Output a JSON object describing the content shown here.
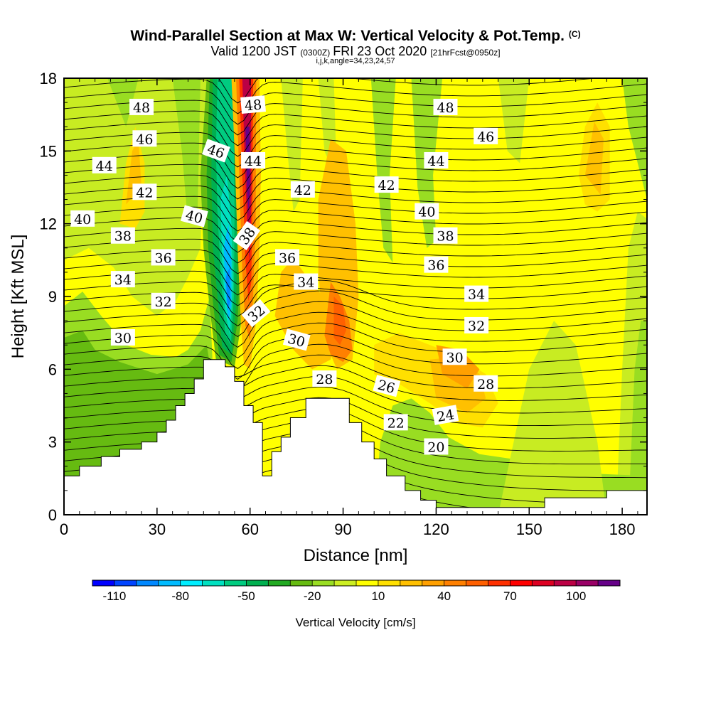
{
  "header": {
    "title": "Wind-Parallel Section at Max W: Vertical Velocity & Pot.Temp.",
    "title_mark": "(C)",
    "valid_prefix": "Valid 1200 JST",
    "valid_utc": "(0300Z)",
    "valid_date": "FRI 23 Oct 2020",
    "forecast": "[21hrFcst@0950z]",
    "indices": "i,j,k,angle=34,23,24,57"
  },
  "chart_data": {
    "type": "heatmap",
    "xlabel": "Distance [nm]",
    "ylabel": "Height [Kft MSL]",
    "xlim": [
      0,
      188
    ],
    "ylim": [
      0,
      18
    ],
    "x_ticks": [
      "0",
      "30",
      "60",
      "90",
      "120",
      "150",
      "180"
    ],
    "y_ticks": [
      "0",
      "3",
      "6",
      "9",
      "12",
      "15",
      "18"
    ],
    "x_tick_values": [
      0,
      30,
      60,
      90,
      120,
      150,
      180
    ],
    "y_tick_values": [
      0,
      3,
      6,
      9,
      12,
      15,
      18
    ],
    "terrain_profile": [
      [
        0,
        1.6
      ],
      [
        5,
        1.6
      ],
      [
        5,
        2.0
      ],
      [
        12,
        2.0
      ],
      [
        12,
        2.4
      ],
      [
        18,
        2.4
      ],
      [
        18,
        2.7
      ],
      [
        25,
        2.7
      ],
      [
        25,
        3.0
      ],
      [
        30,
        3.0
      ],
      [
        30,
        3.4
      ],
      [
        33,
        3.4
      ],
      [
        33,
        3.9
      ],
      [
        36,
        3.9
      ],
      [
        36,
        4.5
      ],
      [
        39,
        4.5
      ],
      [
        39,
        5.0
      ],
      [
        42,
        5.0
      ],
      [
        42,
        5.6
      ],
      [
        45,
        5.6
      ],
      [
        45,
        6.4
      ],
      [
        52,
        6.4
      ],
      [
        52,
        6.1
      ],
      [
        55,
        6.1
      ],
      [
        55,
        5.5
      ],
      [
        58,
        5.5
      ],
      [
        58,
        4.5
      ],
      [
        61,
        4.5
      ],
      [
        61,
        3.8
      ],
      [
        64,
        3.8
      ],
      [
        64,
        1.6
      ],
      [
        67,
        1.6
      ],
      [
        67,
        2.6
      ],
      [
        70,
        2.6
      ],
      [
        70,
        3.2
      ],
      [
        73,
        3.2
      ],
      [
        73,
        4.0
      ],
      [
        78,
        4.0
      ],
      [
        78,
        4.8
      ],
      [
        92,
        4.8
      ],
      [
        92,
        3.8
      ],
      [
        96,
        3.8
      ],
      [
        96,
        3.0
      ],
      [
        100,
        3.0
      ],
      [
        100,
        2.3
      ],
      [
        104,
        2.3
      ],
      [
        104,
        1.6
      ],
      [
        110,
        1.6
      ],
      [
        110,
        1.0
      ],
      [
        115,
        1.0
      ],
      [
        115,
        0.6
      ],
      [
        120,
        0.6
      ],
      [
        120,
        0.3
      ],
      [
        155,
        0.3
      ],
      [
        155,
        0.7
      ],
      [
        175,
        0.7
      ],
      [
        175,
        1.0
      ],
      [
        188,
        1.0
      ]
    ],
    "potential_temperature_labels": [
      {
        "text": "48",
        "x": 25,
        "y": 16.8,
        "angle": 0
      },
      {
        "text": "46",
        "x": 26,
        "y": 15.5,
        "angle": 0
      },
      {
        "text": "44",
        "x": 13,
        "y": 14.4,
        "angle": 0
      },
      {
        "text": "42",
        "x": 26,
        "y": 13.3,
        "angle": 0
      },
      {
        "text": "40",
        "x": 6,
        "y": 12.2,
        "angle": 0
      },
      {
        "text": "38",
        "x": 19,
        "y": 11.5,
        "angle": 0
      },
      {
        "text": "36",
        "x": 32,
        "y": 10.6,
        "angle": 0
      },
      {
        "text": "34",
        "x": 19,
        "y": 9.7,
        "angle": 0
      },
      {
        "text": "32",
        "x": 32,
        "y": 8.8,
        "angle": 0
      },
      {
        "text": "30",
        "x": 19,
        "y": 7.3,
        "angle": 0
      },
      {
        "text": "46",
        "x": 49,
        "y": 15.0,
        "angle": 20
      },
      {
        "text": "40",
        "x": 42,
        "y": 12.3,
        "angle": 15
      },
      {
        "text": "48",
        "x": 61,
        "y": 16.9,
        "angle": -5
      },
      {
        "text": "44",
        "x": 61,
        "y": 14.6,
        "angle": 0
      },
      {
        "text": "38",
        "x": 59,
        "y": 11.5,
        "angle": -55
      },
      {
        "text": "32",
        "x": 62,
        "y": 8.3,
        "angle": -40
      },
      {
        "text": "42",
        "x": 77,
        "y": 13.4,
        "angle": 0
      },
      {
        "text": "36",
        "x": 72,
        "y": 10.6,
        "angle": 0
      },
      {
        "text": "34",
        "x": 78,
        "y": 9.6,
        "angle": 0
      },
      {
        "text": "30",
        "x": 75,
        "y": 7.2,
        "angle": 15
      },
      {
        "text": "28",
        "x": 84,
        "y": 5.6,
        "angle": 0
      },
      {
        "text": "42",
        "x": 104,
        "y": 13.6,
        "angle": 0
      },
      {
        "text": "26",
        "x": 104,
        "y": 5.3,
        "angle": 15
      },
      {
        "text": "22",
        "x": 107,
        "y": 3.8,
        "angle": 0
      },
      {
        "text": "48",
        "x": 123,
        "y": 16.8,
        "angle": 0
      },
      {
        "text": "44",
        "x": 120,
        "y": 14.6,
        "angle": 0
      },
      {
        "text": "40",
        "x": 117,
        "y": 12.5,
        "angle": 0
      },
      {
        "text": "38",
        "x": 123,
        "y": 11.5,
        "angle": 0
      },
      {
        "text": "36",
        "x": 120,
        "y": 10.3,
        "angle": 0
      },
      {
        "text": "24",
        "x": 123,
        "y": 4.1,
        "angle": -10
      },
      {
        "text": "20",
        "x": 120,
        "y": 2.8,
        "angle": 0
      },
      {
        "text": "46",
        "x": 136,
        "y": 15.6,
        "angle": 0
      },
      {
        "text": "34",
        "x": 133,
        "y": 9.1,
        "angle": 0
      },
      {
        "text": "32",
        "x": 133,
        "y": 7.8,
        "angle": 0
      },
      {
        "text": "30",
        "x": 126,
        "y": 6.5,
        "angle": 0
      },
      {
        "text": "28",
        "x": 136,
        "y": 5.4,
        "angle": 0
      }
    ],
    "colorbar": {
      "title": "Vertical Velocity [cm/s]",
      "levels": [
        -120,
        -110,
        -100,
        -90,
        -80,
        -70,
        -60,
        -50,
        -40,
        -30,
        -20,
        -10,
        0,
        10,
        20,
        30,
        40,
        50,
        60,
        70,
        80,
        90,
        100,
        110,
        120
      ],
      "colors": [
        "#0000ff",
        "#0044ff",
        "#0088ff",
        "#00bbff",
        "#00eeff",
        "#00e0c0",
        "#00cc80",
        "#00b050",
        "#22aa22",
        "#66bb11",
        "#99dd22",
        "#ccee22",
        "#ffff00",
        "#ffe000",
        "#ffc000",
        "#ffa000",
        "#ff8000",
        "#ff6000",
        "#ff3000",
        "#ff0000",
        "#dd0022",
        "#bb0044",
        "#990066",
        "#660088"
      ],
      "tick_labels": [
        "-110",
        "-80",
        "-50",
        "-20",
        "10",
        "40",
        "70",
        "100"
      ],
      "tick_values": [
        -110,
        -80,
        -50,
        -20,
        10,
        40,
        70,
        100
      ]
    }
  }
}
